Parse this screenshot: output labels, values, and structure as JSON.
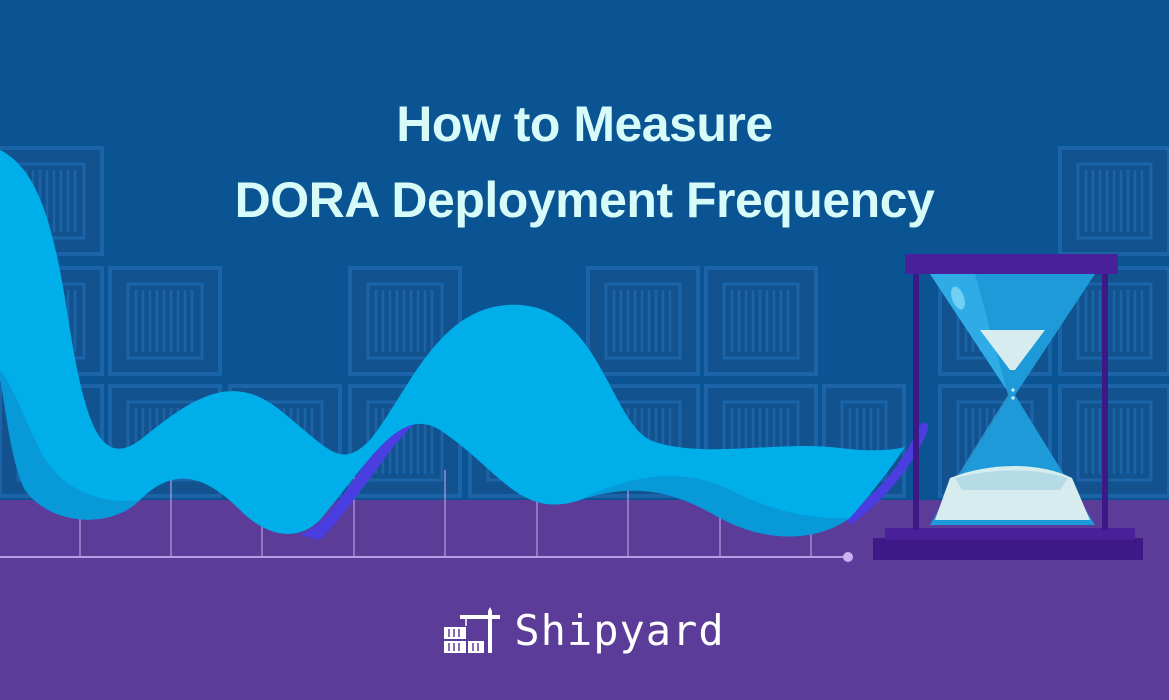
{
  "banner": {
    "title_line1": "How to Measure",
    "title_line2": "DORA Deployment Frequency"
  },
  "brand": {
    "name": "Shipyard",
    "logo_icon": "crane-container-icon"
  },
  "colors": {
    "sky": "#0b5493",
    "ground": "#5b3c98",
    "container_fill": "#12538f",
    "container_border": "#1b64a8",
    "wave": "#00aeea",
    "wave_shadow": "#0a94d3",
    "ribbon_accent": "#4a3ee0",
    "hourglass_frame": "#4a1f9a",
    "hourglass_glass": "#1f9ad8",
    "sand": "#d6ecef",
    "title_text": "#d7fbf8"
  }
}
